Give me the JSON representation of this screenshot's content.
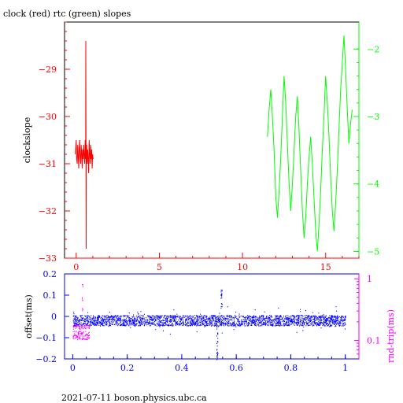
{
  "chart_data": [
    {
      "type": "line",
      "title": "clock (red) rtc (green) slopes",
      "xlabel": "",
      "ylabel": "clockslope",
      "xlim": [
        -0.7,
        17
      ],
      "xticks": [
        0,
        5,
        10,
        15
      ],
      "ylim": [
        -33,
        -28
      ],
      "yticks": [
        -33,
        -32,
        -31,
        -30,
        -29
      ],
      "y2lim": [
        -5.1,
        -1.6
      ],
      "y2ticks": [
        -5,
        -4,
        -3,
        -2
      ],
      "series": [
        {
          "color": "#ff0000",
          "axis": "left",
          "x": [
            -0.05,
            0.0,
            0.03,
            0.06,
            0.09,
            0.12,
            0.15,
            0.18,
            0.21,
            0.24,
            0.27,
            0.3,
            0.33,
            0.36,
            0.39,
            0.42,
            0.45,
            0.48,
            0.51,
            0.54,
            0.57,
            0.58,
            0.6,
            0.61,
            0.63,
            0.66,
            0.69,
            0.72,
            0.75,
            0.78,
            0.81,
            0.84,
            0.87,
            0.9,
            0.93,
            0.96,
            0.99,
            1.02
          ],
          "values": [
            -30.8,
            -30.5,
            -30.9,
            -31.0,
            -30.6,
            -30.8,
            -31.1,
            -30.7,
            -30.5,
            -30.9,
            -31.0,
            -30.6,
            -30.8,
            -31.1,
            -30.7,
            -30.9,
            -30.6,
            -30.8,
            -31.0,
            -30.5,
            -30.9,
            -28.4,
            -32.8,
            -30.8,
            -30.6,
            -31.0,
            -30.7,
            -30.9,
            -31.2,
            -30.5,
            -30.8,
            -31.0,
            -30.6,
            -30.9,
            -30.7,
            -31.1,
            -30.8,
            -30.9
          ]
        },
        {
          "color": "#00ff00",
          "axis": "right",
          "x": [
            11.5,
            11.6,
            11.7,
            11.8,
            11.9,
            12.0,
            12.1,
            12.2,
            12.3,
            12.4,
            12.5,
            12.6,
            12.7,
            12.8,
            12.9,
            13.0,
            13.1,
            13.2,
            13.3,
            13.4,
            13.5,
            13.6,
            13.7,
            13.8,
            13.9,
            14.0,
            14.1,
            14.2,
            14.3,
            14.4,
            14.5,
            14.6,
            14.7,
            14.8,
            14.9,
            15.0,
            15.1,
            15.2,
            15.3,
            15.4,
            15.5,
            15.6,
            15.7,
            15.8,
            15.9,
            16.0,
            16.1,
            16.2,
            16.3,
            16.4,
            16.5,
            16.6
          ],
          "values": [
            -3.3,
            -2.9,
            -2.6,
            -3.0,
            -3.5,
            -4.2,
            -4.5,
            -4.1,
            -3.6,
            -3.0,
            -2.4,
            -2.8,
            -3.4,
            -4.0,
            -4.4,
            -4.0,
            -3.5,
            -3.0,
            -2.7,
            -3.2,
            -3.8,
            -4.4,
            -4.8,
            -4.5,
            -4.0,
            -3.6,
            -3.3,
            -3.7,
            -4.2,
            -4.7,
            -5.0,
            -4.6,
            -4.1,
            -3.5,
            -3.0,
            -2.4,
            -2.8,
            -3.3,
            -3.9,
            -4.4,
            -4.7,
            -4.3,
            -3.8,
            -3.2,
            -2.6,
            -2.2,
            -1.8,
            -2.3,
            -2.9,
            -3.4,
            -3.1,
            -2.9
          ]
        }
      ]
    },
    {
      "type": "scatter",
      "title": "",
      "xlabel": "",
      "ylabel": "offset(ms)",
      "y2label": "rnd-trip(ms)",
      "xlim": [
        -0.03,
        1.05
      ],
      "xticks": [
        0,
        0.2,
        0.4,
        0.6,
        0.8,
        1
      ],
      "ylim": [
        -0.2,
        0.2
      ],
      "yticks": [
        -0.2,
        -0.1,
        0,
        0.1,
        0.2
      ],
      "y2scale": "log",
      "y2lim": [
        0.05,
        1.2
      ],
      "y2ticks": [
        0.1,
        1
      ],
      "series": [
        {
          "color": "#0000ff",
          "marker": "dot",
          "description_band": {
            "x": [
              0,
              1
            ],
            "center": -0.02,
            "spread": 0.025
          },
          "spikes": [
            {
              "x": 0.53,
              "values": [
                -0.05,
                -0.09,
                -0.13,
                -0.17,
                -0.19
              ]
            },
            {
              "x": 0.545,
              "values": [
                0.05,
                0.09,
                0.11
              ]
            }
          ]
        },
        {
          "color": "#ff00ff",
          "marker": "dot",
          "x_range": [
            0.0,
            0.06
          ],
          "values": [
            -0.05,
            -0.08,
            -0.1
          ],
          "spike": {
            "x": 0.035,
            "values": [
              0.03,
              0.08,
              0.15
            ]
          }
        }
      ]
    }
  ],
  "footer": "2021-07-11  boson.physics.ubc.ca",
  "colors": {
    "red": "#ff0000",
    "green": "#00ff00",
    "blue": "#0000ff",
    "magenta": "#ff00ff",
    "axis_top": "#ff0000",
    "axis_bottom": "#0000ff"
  }
}
